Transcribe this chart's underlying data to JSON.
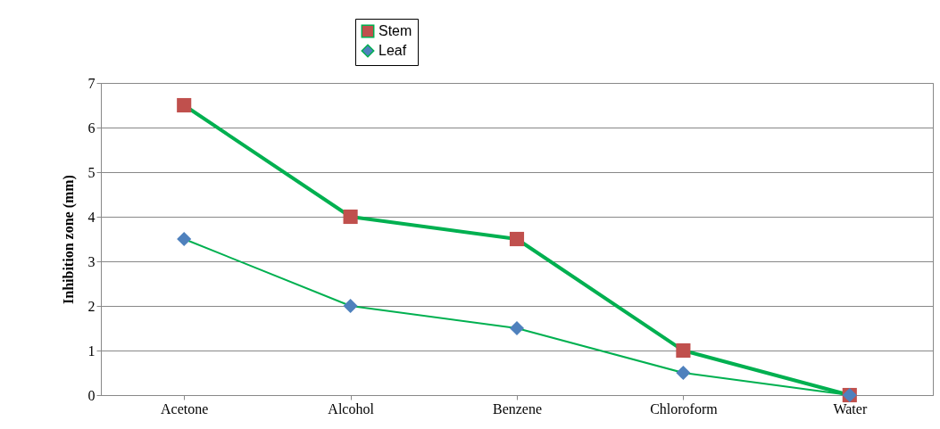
{
  "chart_data": {
    "type": "line",
    "ylabel": "Inhibition zone (mm)",
    "categories": [
      "Acetone",
      "Alcohol",
      "Benzene",
      "Chloroform",
      "Water"
    ],
    "series": [
      {
        "name": "Stem",
        "color": "#c0504d",
        "marker": "square",
        "values": [
          6.5,
          4,
          3.5,
          1,
          0
        ]
      },
      {
        "name": "Leaf",
        "color": "#4f81bd",
        "marker": "diamond",
        "values": [
          3.5,
          2,
          1.5,
          0.5,
          0
        ]
      }
    ],
    "ylim": [
      0,
      7
    ],
    "yticks": [
      0,
      1,
      2,
      3,
      4,
      5,
      6,
      7
    ],
    "grid": "y",
    "legend": "top"
  }
}
